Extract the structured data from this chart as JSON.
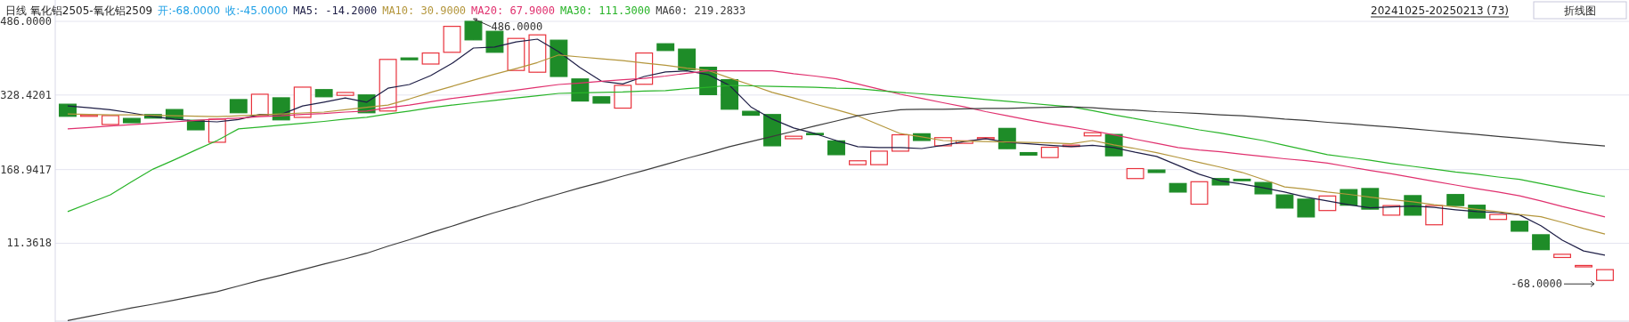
{
  "chart_data": {
    "type": "candlestick",
    "title": "日线 氧化铝2505-氧化铝2509",
    "categories": [
      null,
      null,
      null,
      null,
      null,
      null,
      null,
      null,
      null,
      null,
      null,
      null,
      null,
      null,
      null,
      null,
      null,
      null,
      null,
      null,
      null,
      null,
      null,
      null,
      null,
      null,
      null,
      null,
      null,
      null,
      null,
      null,
      null,
      null,
      null,
      null,
      null,
      null,
      null,
      null,
      null,
      null,
      null,
      null,
      null,
      null,
      null,
      null,
      null,
      null,
      null,
      null,
      null,
      null,
      null,
      null,
      null,
      null,
      null,
      null,
      null,
      null,
      null,
      null,
      null,
      null,
      null,
      null,
      null,
      null,
      null,
      null,
      null
    ],
    "ohlc": [
      [
        308.8,
        308.8,
        282.9,
        282.9
      ],
      [
        282.9,
        285.9,
        282.9,
        285.9
      ],
      [
        265.4,
        284.4,
        265.4,
        284.4
      ],
      [
        278.4,
        278.4,
        269.2,
        269.2
      ],
      [
        286.7,
        286.7,
        279.1,
        279.1
      ],
      [
        297.4,
        297.4,
        276.8,
        276.8
      ],
      [
        274.5,
        274.5,
        254.0,
        254.0
      ],
      [
        227.4,
        276.8,
        227.4,
        276.8
      ],
      [
        318.7,
        318.7,
        290.5,
        290.5
      ],
      [
        284.4,
        330.1,
        284.4,
        330.1
      ],
      [
        322.5,
        322.5,
        275.3,
        275.3
      ],
      [
        280.6,
        345.3,
        280.6,
        345.3
      ],
      [
        340.0,
        340.0,
        324.7,
        324.7
      ],
      [
        327.8,
        333.9,
        327.8,
        333.9
      ],
      [
        328.6,
        328.6,
        290.5,
        290.5
      ],
      [
        294.3,
        404.6,
        294.3,
        404.6
      ],
      [
        407.7,
        407.7,
        403.9,
        403.9
      ],
      [
        394.7,
        418.3,
        394.7,
        418.3
      ],
      [
        419.8,
        475.3,
        419.8,
        475.3
      ],
      [
        486.0,
        486.0,
        446.4,
        446.4
      ],
      [
        464.7,
        464.7,
        419.8,
        419.8
      ],
      [
        381.0,
        449.5,
        381.0,
        449.5
      ],
      [
        377.2,
        457.1,
        377.2,
        457.1
      ],
      [
        445.7,
        445.7,
        368.1,
        368.1
      ],
      [
        362.8,
        362.8,
        315.6,
        315.6
      ],
      [
        324.7,
        324.7,
        311.1,
        311.1
      ],
      [
        300.4,
        349.1,
        300.4,
        349.1
      ],
      [
        351.4,
        418.3,
        351.4,
        418.3
      ],
      [
        438.1,
        438.1,
        423.6,
        423.6
      ],
      [
        426.7,
        426.7,
        382.6,
        382.6
      ],
      [
        387.9,
        387.9,
        329.3,
        329.3
      ],
      [
        361.3,
        361.3,
        298.1,
        298.1
      ],
      [
        293.6,
        293.6,
        285.2,
        285.2
      ],
      [
        286.7,
        286.7,
        219.8,
        219.8
      ],
      [
        235.0,
        240.3,
        235.0,
        240.3
      ],
      [
        246.4,
        246.4,
        244.1,
        244.1
      ],
      [
        230.4,
        230.4,
        200.8,
        200.8
      ],
      [
        179.5,
        187.8,
        179.5,
        187.8
      ],
      [
        179.5,
        208.4,
        179.5,
        208.4
      ],
      [
        208.4,
        243.4,
        208.4,
        243.4
      ],
      [
        245.6,
        245.6,
        231.2,
        231.2
      ],
      [
        219.8,
        237.3,
        219.8,
        237.3
      ],
      [
        225.1,
        230.4,
        225.1,
        230.4
      ],
      [
        235.0,
        237.3,
        235.0,
        237.3
      ],
      [
        257.1,
        257.1,
        213.7,
        213.7
      ],
      [
        205.3,
        205.3,
        200.0,
        200.0
      ],
      [
        194.7,
        216.7,
        194.7,
        216.7
      ],
      [
        218.3,
        221.3,
        218.3,
        221.3
      ],
      [
        241.1,
        247.9,
        241.1,
        247.9
      ],
      [
        244.1,
        244.1,
        198.5,
        198.5
      ],
      [
        149.8,
        171.1,
        149.8,
        171.1
      ],
      [
        168.1,
        168.1,
        162.7,
        162.7
      ],
      [
        139.2,
        139.2,
        120.9,
        120.9
      ],
      [
        95.0,
        143.0,
        95.0,
        143.0
      ],
      [
        149.8,
        149.8,
        136.1,
        136.1
      ],
      [
        148.3,
        148.3,
        145.2,
        145.2
      ],
      [
        141.4,
        141.4,
        117.1,
        117.1
      ],
      [
        114.8,
        114.8,
        86.7,
        86.7
      ],
      [
        105.7,
        105.7,
        67.7,
        67.7
      ],
      [
        81.4,
        112.5,
        81.4,
        112.5
      ],
      [
        126.2,
        126.2,
        92.8,
        92.8
      ],
      [
        128.5,
        128.5,
        84.4,
        84.4
      ],
      [
        71.5,
        92.0,
        71.5,
        92.0
      ],
      [
        113.3,
        113.3,
        71.5,
        71.5
      ],
      [
        50.9,
        92.0,
        50.9,
        92.0
      ],
      [
        115.6,
        115.6,
        92.0,
        92.0
      ],
      [
        92.8,
        92.8,
        65.4,
        65.4
      ],
      [
        62.3,
        73.0,
        62.3,
        73.0
      ],
      [
        58.5,
        58.5,
        37.2,
        37.2
      ],
      [
        29.6,
        29.6,
        -2.3,
        -2.3
      ],
      [
        -19.0,
        -12.2,
        -19.0,
        -12.2
      ],
      [
        -39.1,
        -36.1,
        -39.1,
        -36.1
      ],
      [
        -68,
        -45,
        -68,
        -45
      ]
    ],
    "colors": [
      "#1e8c28",
      "#e8323c",
      "#e8323c",
      "#1e8c28",
      "#1e8c28",
      "#1e8c28",
      "#1e8c28",
      "#e8323c",
      "#1e8c28",
      "#e8323c",
      "#1e8c28",
      "#e8323c",
      "#1e8c28",
      "#e8323c",
      "#1e8c28",
      "#e8323c",
      "#1e8c28",
      "#e8323c",
      "#e8323c",
      "#1e8c28",
      "#1e8c28",
      "#e8323c",
      "#e8323c",
      "#1e8c28",
      "#1e8c28",
      "#1e8c28",
      "#e8323c",
      "#e8323c",
      "#1e8c28",
      "#1e8c28",
      "#1e8c28",
      "#1e8c28",
      "#1e8c28",
      "#1e8c28",
      "#e8323c",
      "#1e8c28",
      "#1e8c28",
      "#e8323c",
      "#e8323c",
      "#e8323c",
      "#1e8c28",
      "#e8323c",
      "#e8323c",
      "#e8323c",
      "#1e8c28",
      "#1e8c28",
      "#e8323c",
      "#e8323c",
      "#e8323c",
      "#1e8c28",
      "#e8323c",
      "#1e8c28",
      "#1e8c28",
      "#e8323c",
      "#1e8c28",
      "#1e8c28",
      "#1e8c28",
      "#1e8c28",
      "#1e8c28",
      "#e8323c",
      "#1e8c28",
      "#1e8c28",
      "#e8323c",
      "#1e8c28",
      "#e8323c",
      "#1e8c28",
      "#1e8c28",
      "#e8323c",
      "#1e8c28",
      "#1e8c28",
      "#e8323c",
      "#e8323c",
      "#e8323c"
    ],
    "series": [
      {
        "name": "MA5: -14.2000",
        "type": "line",
        "color": "#1e1e46",
        "values": [
          305,
          301,
          297,
          290,
          282,
          277,
          273,
          271,
          276,
          287,
          287,
          305,
          313,
          322,
          313,
          343,
          351,
          370,
          396,
          429,
          431,
          442,
          448,
          421,
          387,
          358,
          352,
          368,
          378,
          380,
          372,
          349,
          303,
          277,
          258,
          246,
          231,
          218,
          216,
          216,
          214,
          221,
          229,
          235,
          227,
          224,
          221,
          218,
          221,
          216,
          206,
          197,
          178,
          159,
          145,
          138,
          130,
          121,
          110,
          102,
          94,
          87,
          89,
          91,
          88,
          83,
          79,
          77,
          72,
          49,
          18,
          -5,
          -14.2
        ]
      },
      {
        "name": "MA10: 30.9000",
        "type": "line",
        "color": "#b4963c",
        "values": [
          288,
          287,
          286,
          286,
          285,
          284,
          283,
          282,
          284,
          286,
          288,
          290,
          292,
          297,
          302,
          307,
          320,
          334,
          347,
          360,
          373,
          385,
          398,
          414,
          410,
          406,
          402,
          397,
          392,
          386,
          381,
          365,
          350,
          334,
          322,
          309,
          297,
          284,
          265,
          246,
          239,
          231,
          230,
          229,
          228,
          227,
          226,
          224,
          231,
          222,
          214,
          205,
          195,
          184,
          174,
          163,
          148,
          132,
          127,
          121,
          116,
          110,
          105,
          100,
          94,
          89,
          84,
          79,
          73,
          68,
          56,
          43,
          30.9
        ]
      },
      {
        "name": "MA20: 67.9000",
        "type": "line",
        "color": "#e0306e",
        "values": [
          256,
          259,
          262,
          265,
          268,
          271,
          274,
          277,
          279,
          282,
          284,
          287,
          289,
          292,
          294,
          301,
          307,
          314,
          321,
          327,
          333,
          339,
          345,
          351,
          354,
          358,
          361,
          364,
          369,
          375,
          380,
          380,
          380,
          380,
          374,
          369,
          363,
          352,
          341,
          330,
          321,
          312,
          303,
          293,
          284,
          275,
          267,
          260,
          252,
          243,
          234,
          225,
          216,
          211,
          207,
          202,
          197,
          192,
          188,
          183,
          175,
          167,
          160,
          152,
          144,
          136,
          128,
          121,
          113,
          102,
          90,
          79,
          67.9
        ]
      },
      {
        "name": "MA30: 111.3000",
        "type": "line",
        "color": "#28b428",
        "values": [
          79,
          97,
          115,
          143,
          170,
          190,
          211,
          231,
          256,
          260,
          264,
          268,
          272,
          277,
          281,
          288,
          294,
          301,
          307,
          312,
          317,
          322,
          327,
          332,
          333,
          334,
          335,
          337,
          338,
          342,
          345,
          349,
          348,
          347,
          346,
          345,
          343,
          342,
          338,
          334,
          331,
          327,
          323,
          319,
          315,
          311,
          307,
          303,
          295,
          286,
          278,
          270,
          262,
          254,
          247,
          239,
          231,
          221,
          211,
          201,
          195,
          189,
          182,
          176,
          170,
          164,
          159,
          153,
          148,
          139,
          130,
          120,
          111.3
        ]
      },
      {
        "name": "MA60: 219.2833",
        "type": "line",
        "color": "#3c3c3c",
        "values": [
          -154,
          -145,
          -136,
          -127,
          -119,
          -110,
          -101,
          -92,
          -80,
          -68,
          -57,
          -45,
          -33,
          -22,
          -10,
          5,
          19,
          34,
          48,
          63,
          77,
          90,
          104,
          117,
          130,
          142,
          155,
          167,
          180,
          193,
          205,
          218,
          229,
          240,
          251,
          262,
          273,
          284,
          291,
          297,
          298,
          298,
          299,
          300,
          300,
          301,
          302,
          303,
          301,
          298,
          296,
          293,
          291,
          289,
          286,
          284,
          281,
          277,
          274,
          270,
          267,
          263,
          260,
          256,
          252,
          248,
          244,
          240,
          236,
          232,
          227,
          223,
          219.28
        ]
      }
    ],
    "ylim": [
      -157,
      486
    ],
    "yticks": [
      {
        "value": 486,
        "label": "486.0000"
      },
      {
        "value": 328.4201,
        "label": "328.4201"
      },
      {
        "value": 168.9417,
        "label": "168.9417"
      },
      {
        "value": 11.3618,
        "label": "11.3618"
      }
    ],
    "grid": "y",
    "legend": "top",
    "annotations": [
      "486.0000",
      "-68.0000",
      "开:-68.0000",
      "收:-45.0000",
      "20241025-20250213 (73)",
      "折线图"
    ]
  }
}
